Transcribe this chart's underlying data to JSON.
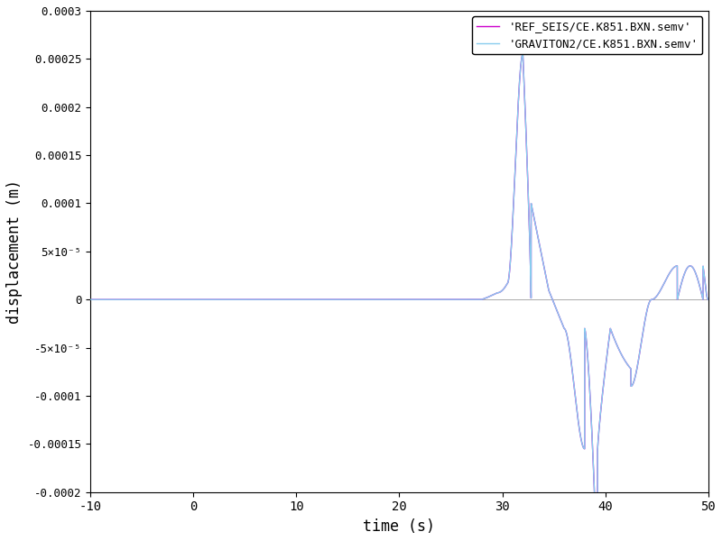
{
  "title": "",
  "xlabel": "time (s)",
  "ylabel": "displacement (m)",
  "xlim": [
    -10,
    50
  ],
  "ylim": [
    -0.0002,
    0.0003
  ],
  "ref_label": "'REF_SEIS/CE.K851.BXN.semv'",
  "graviton_label": "'GRAVITON2/CE.K851.BXN.semv'",
  "ref_color": "#cc00cc",
  "graviton_color": "#88ccee",
  "bg_color": "#ffffff",
  "legend_loc": "upper right",
  "font_family": "monospace",
  "yticks": [
    -0.0002,
    -0.00015,
    -0.0001,
    -5e-05,
    0.0,
    5e-05,
    0.0001,
    0.00015,
    0.0002,
    0.00025,
    0.0003
  ],
  "xticks": [
    -10,
    0,
    10,
    20,
    30,
    40,
    50
  ],
  "line_width": 1.0,
  "figsize": [
    8.0,
    6.0
  ],
  "dpi": 100
}
